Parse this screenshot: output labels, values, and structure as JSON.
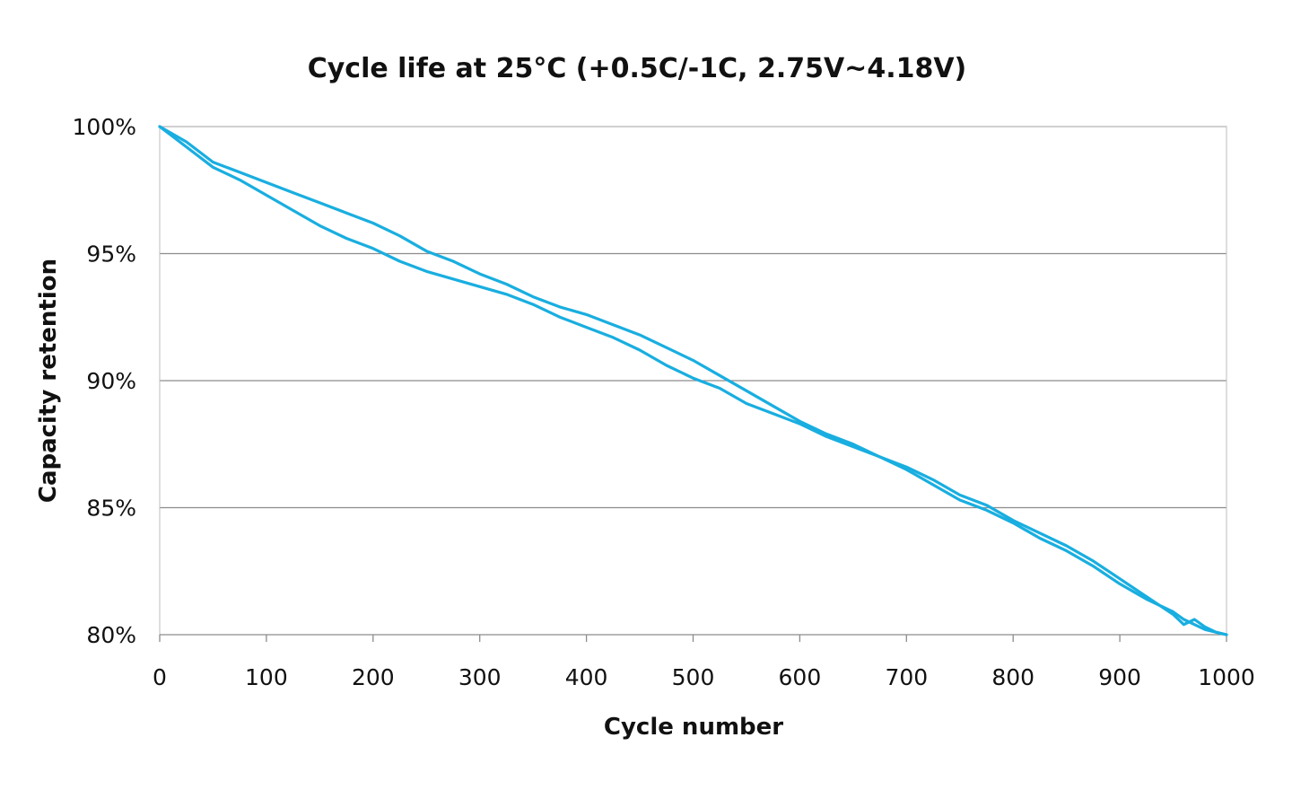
{
  "chart_data": {
    "type": "line",
    "title": "Cycle life at 25°C (+0.5C/-1C, 2.75V~4.18V)",
    "xlabel": "Cycle number",
    "ylabel": "Capacity retention",
    "xlim": [
      0,
      1000
    ],
    "ylim": [
      0.8,
      1.0
    ],
    "x_ticks": [
      0,
      100,
      200,
      300,
      400,
      500,
      600,
      700,
      800,
      900,
      1000
    ],
    "x_tick_labels": [
      "0",
      "100",
      "200",
      "300",
      "400",
      "500",
      "600",
      "700",
      "800",
      "900",
      "1000"
    ],
    "y_ticks": [
      0.8,
      0.85,
      0.9,
      0.95,
      1.0
    ],
    "y_tick_labels": [
      "80%",
      "85%",
      "90%",
      "95%",
      "100%"
    ],
    "grid": "horizontal",
    "legend": "none",
    "series_color": "#19aee0",
    "series": [
      {
        "x": [
          0,
          25,
          50,
          75,
          100,
          125,
          150,
          175,
          200,
          225,
          250,
          275,
          300,
          325,
          350,
          375,
          400,
          425,
          450,
          475,
          500,
          525,
          550,
          575,
          600,
          625,
          650,
          675,
          700,
          725,
          750,
          775,
          800,
          825,
          850,
          875,
          900,
          925,
          950,
          960,
          970,
          980,
          990,
          1000
        ],
        "values": [
          1.0,
          0.992,
          0.984,
          0.979,
          0.973,
          0.967,
          0.961,
          0.956,
          0.952,
          0.947,
          0.943,
          0.94,
          0.937,
          0.934,
          0.93,
          0.925,
          0.921,
          0.917,
          0.912,
          0.906,
          0.901,
          0.897,
          0.891,
          0.887,
          0.883,
          0.878,
          0.874,
          0.87,
          0.866,
          0.861,
          0.855,
          0.851,
          0.845,
          0.84,
          0.835,
          0.829,
          0.822,
          0.815,
          0.808,
          0.804,
          0.806,
          0.803,
          0.801,
          0.8
        ]
      },
      {
        "x": [
          0,
          25,
          50,
          75,
          100,
          125,
          150,
          175,
          200,
          225,
          250,
          275,
          300,
          325,
          350,
          375,
          400,
          425,
          450,
          475,
          500,
          525,
          550,
          575,
          600,
          625,
          650,
          675,
          700,
          725,
          750,
          775,
          800,
          825,
          850,
          875,
          900,
          925,
          950,
          960,
          970,
          980,
          990,
          1000
        ],
        "values": [
          1.0,
          0.994,
          0.986,
          0.982,
          0.978,
          0.974,
          0.97,
          0.966,
          0.962,
          0.957,
          0.951,
          0.947,
          0.942,
          0.938,
          0.933,
          0.929,
          0.926,
          0.922,
          0.918,
          0.913,
          0.908,
          0.902,
          0.896,
          0.89,
          0.884,
          0.879,
          0.875,
          0.87,
          0.865,
          0.859,
          0.853,
          0.849,
          0.844,
          0.838,
          0.833,
          0.827,
          0.82,
          0.814,
          0.809,
          0.806,
          0.804,
          0.802,
          0.801,
          0.8
        ]
      }
    ]
  }
}
